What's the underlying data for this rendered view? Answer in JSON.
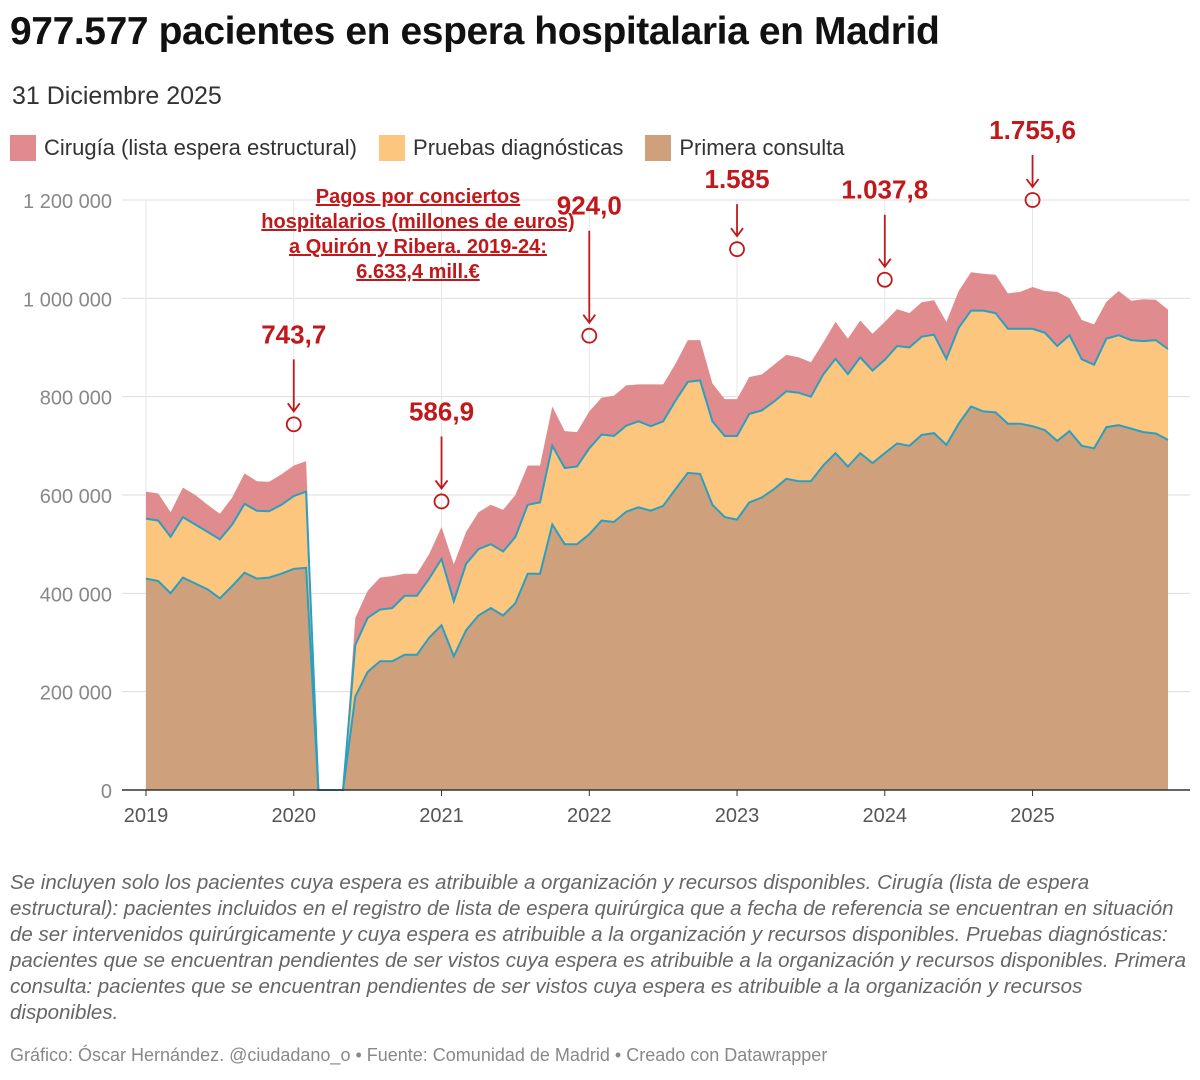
{
  "title": "977.577 pacientes en espera hospitalaria en Madrid",
  "subtitle": "31 Diciembre 2025",
  "legend": [
    {
      "label": "Cirugía (lista espera estructural)",
      "color": "#e08c8e"
    },
    {
      "label": "Pruebas diagnósticas",
      "color": "#fcc67e"
    },
    {
      "label": "Primera consulta",
      "color": "#cfa07c"
    }
  ],
  "colors": {
    "cirugia": "#e08c8e",
    "pruebas": "#fcc67e",
    "consulta": "#cfa07c",
    "line": "#2a9fc0",
    "annotation": "#c0181b",
    "grid": "#dddddd",
    "axis_text": "#888888"
  },
  "chart_data": {
    "type": "area",
    "stacked": true,
    "x_start": "2019-01",
    "x_end": "2025-12",
    "ylim": [
      0,
      1200000
    ],
    "y_ticks": [
      0,
      200000,
      400000,
      600000,
      800000,
      1000000,
      1200000
    ],
    "y_tick_labels": [
      "0",
      "200 000",
      "400 000",
      "600 000",
      "800 000",
      "1 000 000",
      "1 200 000"
    ],
    "x_tick_labels": [
      "2019",
      "2020",
      "2021",
      "2022",
      "2023",
      "2024",
      "2025"
    ],
    "grid": true,
    "series": [
      {
        "name": "Primera consulta",
        "points": [
          [
            "2019-01",
            430000
          ],
          [
            "2019-02",
            425000
          ],
          [
            "2019-03",
            400000
          ],
          [
            "2019-04",
            432000
          ],
          [
            "2019-05",
            420000
          ],
          [
            "2019-06",
            408000
          ],
          [
            "2019-07",
            390000
          ],
          [
            "2019-08",
            415000
          ],
          [
            "2019-09",
            442000
          ],
          [
            "2019-10",
            430000
          ],
          [
            "2019-11",
            432000
          ],
          [
            "2019-12",
            440000
          ],
          [
            "2020-01",
            450000
          ],
          [
            "2020-02",
            452000
          ],
          [
            "2020-03",
            0
          ],
          [
            "2020-05",
            0
          ],
          [
            "2020-06",
            190000
          ],
          [
            "2020-07",
            240000
          ],
          [
            "2020-08",
            262000
          ],
          [
            "2020-09",
            262000
          ],
          [
            "2020-10",
            275000
          ],
          [
            "2020-11",
            275000
          ],
          [
            "2020-12",
            310000
          ],
          [
            "2021-01",
            335000
          ],
          [
            "2021-02",
            272000
          ],
          [
            "2021-03",
            325000
          ],
          [
            "2021-04",
            355000
          ],
          [
            "2021-05",
            370000
          ],
          [
            "2021-06",
            355000
          ],
          [
            "2021-07",
            380000
          ],
          [
            "2021-08",
            440000
          ],
          [
            "2021-09",
            440000
          ],
          [
            "2021-10",
            540000
          ],
          [
            "2021-11",
            500000
          ],
          [
            "2021-12",
            500000
          ],
          [
            "2022-01",
            520000
          ],
          [
            "2022-02",
            548000
          ],
          [
            "2022-03",
            545000
          ],
          [
            "2022-04",
            566000
          ],
          [
            "2022-05",
            575000
          ],
          [
            "2022-06",
            568000
          ],
          [
            "2022-07",
            578000
          ],
          [
            "2022-08",
            612000
          ],
          [
            "2022-09",
            645000
          ],
          [
            "2022-10",
            643000
          ],
          [
            "2022-11",
            580000
          ],
          [
            "2022-12",
            555000
          ],
          [
            "2023-01",
            550000
          ],
          [
            "2023-02",
            585000
          ],
          [
            "2023-03",
            595000
          ],
          [
            "2023-04",
            612000
          ],
          [
            "2023-05",
            633000
          ],
          [
            "2023-06",
            628000
          ],
          [
            "2023-07",
            628000
          ],
          [
            "2023-08",
            660000
          ],
          [
            "2023-09",
            685000
          ],
          [
            "2023-10",
            658000
          ],
          [
            "2023-11",
            685000
          ],
          [
            "2023-12",
            665000
          ],
          [
            "2024-01",
            685000
          ],
          [
            "2024-02",
            705000
          ],
          [
            "2024-03",
            700000
          ],
          [
            "2024-04",
            722000
          ],
          [
            "2024-05",
            726000
          ],
          [
            "2024-06",
            702000
          ],
          [
            "2024-07",
            745000
          ],
          [
            "2024-08",
            780000
          ],
          [
            "2024-09",
            770000
          ],
          [
            "2024-10",
            768000
          ],
          [
            "2024-11",
            745000
          ],
          [
            "2024-12",
            745000
          ],
          [
            "2025-01",
            740000
          ],
          [
            "2025-02",
            732000
          ],
          [
            "2025-03",
            710000
          ],
          [
            "2025-04",
            730000
          ],
          [
            "2025-05",
            700000
          ],
          [
            "2025-06",
            695000
          ],
          [
            "2025-07",
            738000
          ],
          [
            "2025-08",
            742000
          ],
          [
            "2025-09",
            735000
          ],
          [
            "2025-10",
            728000
          ],
          [
            "2025-11",
            725000
          ],
          [
            "2025-12",
            712000
          ]
        ]
      },
      {
        "name": "Pruebas diagnósticas",
        "points": [
          [
            "2019-01",
            122000
          ],
          [
            "2019-02",
            123000
          ],
          [
            "2019-03",
            115000
          ],
          [
            "2019-04",
            123000
          ],
          [
            "2019-05",
            120000
          ],
          [
            "2019-06",
            117000
          ],
          [
            "2019-07",
            120000
          ],
          [
            "2019-08",
            125000
          ],
          [
            "2019-09",
            140000
          ],
          [
            "2019-10",
            138000
          ],
          [
            "2019-11",
            135000
          ],
          [
            "2019-12",
            140000
          ],
          [
            "2020-01",
            148000
          ],
          [
            "2020-02",
            155000
          ],
          [
            "2020-03",
            0
          ],
          [
            "2020-05",
            0
          ],
          [
            "2020-06",
            105000
          ],
          [
            "2020-07",
            110000
          ],
          [
            "2020-08",
            105000
          ],
          [
            "2020-09",
            108000
          ],
          [
            "2020-10",
            120000
          ],
          [
            "2020-11",
            120000
          ],
          [
            "2020-12",
            120000
          ],
          [
            "2021-01",
            135000
          ],
          [
            "2021-02",
            112000
          ],
          [
            "2021-03",
            135000
          ],
          [
            "2021-04",
            135000
          ],
          [
            "2021-05",
            130000
          ],
          [
            "2021-06",
            130000
          ],
          [
            "2021-07",
            135000
          ],
          [
            "2021-08",
            140000
          ],
          [
            "2021-09",
            145000
          ],
          [
            "2021-10",
            160000
          ],
          [
            "2021-11",
            155000
          ],
          [
            "2021-12",
            158000
          ],
          [
            "2022-01",
            175000
          ],
          [
            "2022-02",
            175000
          ],
          [
            "2022-03",
            175000
          ],
          [
            "2022-04",
            175000
          ],
          [
            "2022-05",
            175000
          ],
          [
            "2022-06",
            172000
          ],
          [
            "2022-07",
            172000
          ],
          [
            "2022-08",
            180000
          ],
          [
            "2022-09",
            185000
          ],
          [
            "2022-10",
            190000
          ],
          [
            "2022-11",
            170000
          ],
          [
            "2022-12",
            165000
          ],
          [
            "2023-01",
            170000
          ],
          [
            "2023-02",
            180000
          ],
          [
            "2023-03",
            177000
          ],
          [
            "2023-04",
            178000
          ],
          [
            "2023-05",
            178000
          ],
          [
            "2023-06",
            180000
          ],
          [
            "2023-07",
            172000
          ],
          [
            "2023-08",
            185000
          ],
          [
            "2023-09",
            192000
          ],
          [
            "2023-10",
            188000
          ],
          [
            "2023-11",
            195000
          ],
          [
            "2023-12",
            188000
          ],
          [
            "2024-01",
            190000
          ],
          [
            "2024-02",
            198000
          ],
          [
            "2024-03",
            200000
          ],
          [
            "2024-04",
            200000
          ],
          [
            "2024-05",
            200000
          ],
          [
            "2024-06",
            175000
          ],
          [
            "2024-07",
            195000
          ],
          [
            "2024-08",
            195000
          ],
          [
            "2024-09",
            205000
          ],
          [
            "2024-10",
            202000
          ],
          [
            "2024-11",
            193000
          ],
          [
            "2024-12",
            193000
          ],
          [
            "2025-01",
            198000
          ],
          [
            "2025-02",
            198000
          ],
          [
            "2025-03",
            193000
          ],
          [
            "2025-04",
            195000
          ],
          [
            "2025-05",
            176000
          ],
          [
            "2025-06",
            170000
          ],
          [
            "2025-07",
            180000
          ],
          [
            "2025-08",
            183000
          ],
          [
            "2025-09",
            180000
          ],
          [
            "2025-10",
            185000
          ],
          [
            "2025-11",
            190000
          ],
          [
            "2025-12",
            185000
          ]
        ]
      },
      {
        "name": "Cirugía (lista espera estructural)",
        "points": [
          [
            "2019-01",
            55000
          ],
          [
            "2019-02",
            55000
          ],
          [
            "2019-03",
            50000
          ],
          [
            "2019-04",
            60000
          ],
          [
            "2019-05",
            60000
          ],
          [
            "2019-06",
            55000
          ],
          [
            "2019-07",
            52000
          ],
          [
            "2019-08",
            55000
          ],
          [
            "2019-09",
            62000
          ],
          [
            "2019-10",
            60000
          ],
          [
            "2019-11",
            60000
          ],
          [
            "2019-12",
            62000
          ],
          [
            "2020-01",
            62000
          ],
          [
            "2020-02",
            62000
          ],
          [
            "2020-03",
            0
          ],
          [
            "2020-05",
            0
          ],
          [
            "2020-06",
            55000
          ],
          [
            "2020-07",
            55000
          ],
          [
            "2020-08",
            65000
          ],
          [
            "2020-09",
            65000
          ],
          [
            "2020-10",
            45000
          ],
          [
            "2020-11",
            45000
          ],
          [
            "2020-12",
            50000
          ],
          [
            "2021-01",
            65000
          ],
          [
            "2021-02",
            75000
          ],
          [
            "2021-03",
            65000
          ],
          [
            "2021-04",
            75000
          ],
          [
            "2021-05",
            80000
          ],
          [
            "2021-06",
            85000
          ],
          [
            "2021-07",
            85000
          ],
          [
            "2021-08",
            80000
          ],
          [
            "2021-09",
            75000
          ],
          [
            "2021-10",
            80000
          ],
          [
            "2021-11",
            75000
          ],
          [
            "2021-12",
            70000
          ],
          [
            "2022-01",
            75000
          ],
          [
            "2022-02",
            75000
          ],
          [
            "2022-03",
            82000
          ],
          [
            "2022-04",
            82000
          ],
          [
            "2022-05",
            75000
          ],
          [
            "2022-06",
            85000
          ],
          [
            "2022-07",
            75000
          ],
          [
            "2022-08",
            75000
          ],
          [
            "2022-09",
            85000
          ],
          [
            "2022-10",
            82000
          ],
          [
            "2022-11",
            77000
          ],
          [
            "2022-12",
            75000
          ],
          [
            "2023-01",
            75000
          ],
          [
            "2023-02",
            75000
          ],
          [
            "2023-03",
            73000
          ],
          [
            "2023-04",
            75000
          ],
          [
            "2023-05",
            74000
          ],
          [
            "2023-06",
            72000
          ],
          [
            "2023-07",
            70000
          ],
          [
            "2023-08",
            65000
          ],
          [
            "2023-09",
            75000
          ],
          [
            "2023-10",
            72000
          ],
          [
            "2023-11",
            75000
          ],
          [
            "2023-12",
            75000
          ],
          [
            "2024-01",
            77000
          ],
          [
            "2024-02",
            75000
          ],
          [
            "2024-03",
            70000
          ],
          [
            "2024-04",
            70000
          ],
          [
            "2024-05",
            70000
          ],
          [
            "2024-06",
            75000
          ],
          [
            "2024-07",
            75000
          ],
          [
            "2024-08",
            78000
          ],
          [
            "2024-09",
            75000
          ],
          [
            "2024-10",
            78000
          ],
          [
            "2024-11",
            72000
          ],
          [
            "2024-12",
            75000
          ],
          [
            "2025-01",
            85000
          ],
          [
            "2025-02",
            85000
          ],
          [
            "2025-03",
            110000
          ],
          [
            "2025-04",
            75000
          ],
          [
            "2025-05",
            80000
          ],
          [
            "2025-06",
            82000
          ],
          [
            "2025-07",
            75000
          ],
          [
            "2025-08",
            90000
          ],
          [
            "2025-09",
            80000
          ],
          [
            "2025-10",
            85000
          ],
          [
            "2025-11",
            82000
          ],
          [
            "2025-12",
            80000
          ]
        ]
      }
    ],
    "annotations": [
      {
        "label": "743,7",
        "date": "2020-01",
        "y": 743700
      },
      {
        "label": "586,9",
        "date": "2021-01",
        "y": 586900
      },
      {
        "label": "924,0",
        "date": "2022-01",
        "y": 924000
      },
      {
        "label": "1.585",
        "date": "2023-01",
        "y": 1100000
      },
      {
        "label": "1.037,8",
        "date": "2024-01",
        "y": 1037800
      },
      {
        "label": "1.755,6",
        "date": "2025-01",
        "y": 1200000
      }
    ],
    "annotation_note": [
      "Pagos por conciertos",
      "hospitalarios (millones de euros)",
      "a Quirón y Ribera. 2019-24:",
      "6.633,4 mill.€"
    ]
  },
  "notes": "Se incluyen solo los pacientes cuya espera es atribuible a organización y recursos disponibles. Cirugía (lista de espera estructural): pacientes incluidos en el registro de lista de espera quirúrgica que a fecha de referencia se encuentran en situación de ser intervenidos quirúrgicamente y cuya espera es atribuible a la organización y recursos disponibles. Pruebas diagnósticas: pacientes que se encuentran pendientes de ser vistos cuya espera es atribuible a la organización y recursos disponibles. Primera consulta: pacientes que se encuentran pendientes de ser vistos cuya espera es atribuible a la organización y recursos disponibles.",
  "footer": "Gráfico: Óscar Hernández. @ciudadano_o • Fuente: Comunidad de Madrid  • Creado con Datawrapper"
}
